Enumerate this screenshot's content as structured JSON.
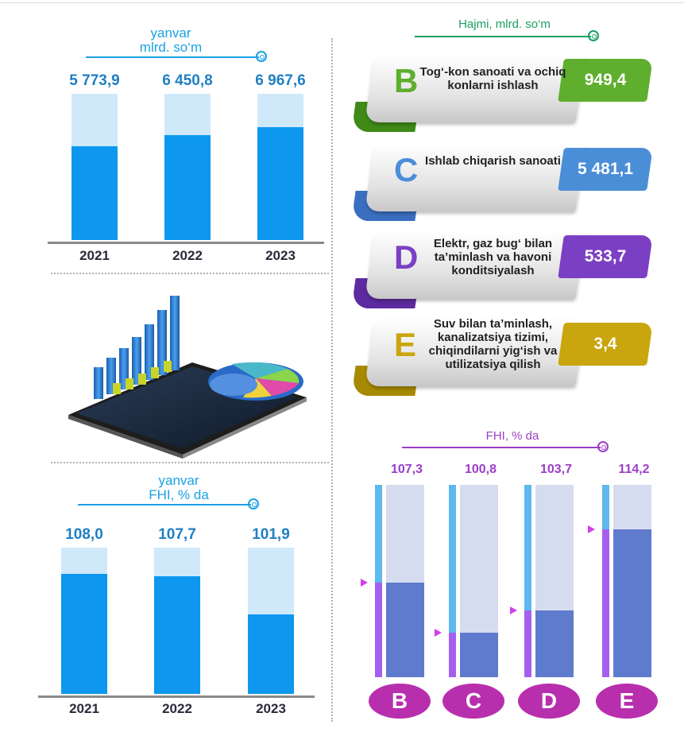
{
  "colors": {
    "accent_blue": "#0d97ee",
    "pale_blue": "#cfe9fb",
    "title_blue": "#1ba1e2",
    "green": "#18a061",
    "purple": "#9a3fc7",
    "magenta": "#b82fae"
  },
  "volume_chart": {
    "title_line1": "yanvar",
    "title_line2": "mlrd. so‘m",
    "chart_data": {
      "type": "bar",
      "categories": [
        "2021",
        "2022",
        "2023"
      ],
      "values": [
        5773.9,
        6450.8,
        6967.6
      ],
      "value_labels": [
        "5 773,9",
        "6 450,8",
        "6 967,6"
      ]
    }
  },
  "image": {
    "description_icon": "tablet-with-charts-illustration"
  },
  "fhi_chart_left": {
    "title_line1": "yanvar",
    "title_line2": "FHI, % da",
    "chart_data": {
      "type": "bar",
      "categories": [
        "2021",
        "2022",
        "2023"
      ],
      "values": [
        108.0,
        107.7,
        101.9
      ],
      "value_labels": [
        "108,0",
        "107,7",
        "101,9"
      ]
    }
  },
  "sectors": {
    "title": "Hajmi, mlrd. so‘m",
    "items": [
      {
        "letter": "B",
        "text": "Tog‘-kon sanoati va ochiq konlarni ishlash",
        "value": "949,4",
        "color": "#5fae2e",
        "dark": "#3f8a18"
      },
      {
        "letter": "C",
        "text": "Ishlab chiqarish sanoati",
        "value": "5 481,1",
        "color": "#4a8ed8",
        "dark": "#3a6fc0"
      },
      {
        "letter": "D",
        "text": "Elektr, gaz bug‘ bilan ta’minlash va havoni konditsiyalash",
        "value": "533,7",
        "color": "#7b3fc4",
        "dark": "#5d2aa0"
      },
      {
        "letter": "E",
        "text": "Suv bilan ta’minlash, kanalizatsiya tizimi, chiqindilarni yig‘ish va utilizatsiya qilish",
        "value": "3,4",
        "color": "#c9a60d",
        "dark": "#a88a00"
      }
    ]
  },
  "fhi_chart_right": {
    "title": "FHI, % da",
    "chart_data": {
      "type": "bar",
      "categories": [
        "B",
        "C",
        "D",
        "E"
      ],
      "values": [
        107.3,
        100.8,
        103.7,
        114.2
      ],
      "value_labels": [
        "107,3",
        "100,8",
        "103,7",
        "114,2"
      ]
    }
  }
}
